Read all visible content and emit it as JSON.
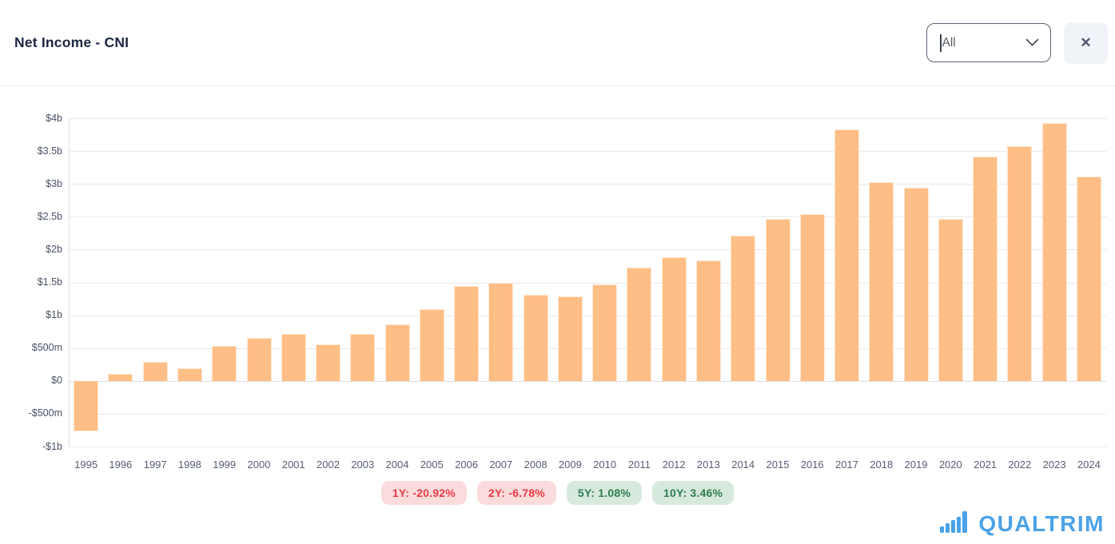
{
  "header": {
    "title": "Net Income - CNI",
    "range_selector": {
      "value": "All"
    },
    "close_button": {
      "glyph": "✕"
    }
  },
  "chart_data": {
    "type": "bar",
    "title": "Net Income - CNI",
    "unit": "$ billions",
    "categories": [
      "1995",
      "1996",
      "1997",
      "1998",
      "1999",
      "2000",
      "2001",
      "2002",
      "2003",
      "2004",
      "2005",
      "2006",
      "2007",
      "2008",
      "2009",
      "2010",
      "2011",
      "2012",
      "2013",
      "2014",
      "2015",
      "2016",
      "2017",
      "2018",
      "2019",
      "2020",
      "2021",
      "2022",
      "2023",
      "2024"
    ],
    "values": [
      -0.77,
      0.11,
      0.29,
      0.19,
      0.53,
      0.65,
      0.72,
      0.56,
      0.71,
      0.86,
      1.09,
      1.45,
      1.5,
      1.31,
      1.29,
      1.47,
      1.72,
      1.88,
      1.83,
      2.21,
      2.47,
      2.54,
      3.83,
      3.03,
      2.94,
      2.47,
      3.42,
      3.58,
      3.93,
      3.11
    ],
    "ylim": [
      -1,
      4
    ],
    "y_ticks": [
      {
        "value": 4,
        "label": "$4b"
      },
      {
        "value": 3.5,
        "label": "$3.5b"
      },
      {
        "value": 3,
        "label": "$3b"
      },
      {
        "value": 2.5,
        "label": "$2.5b"
      },
      {
        "value": 2,
        "label": "$2b"
      },
      {
        "value": 1.5,
        "label": "$1.5b"
      },
      {
        "value": 1,
        "label": "$1b"
      },
      {
        "value": 0.5,
        "label": "$500m"
      },
      {
        "value": 0,
        "label": "$0"
      },
      {
        "value": -0.5,
        "label": "-$500m"
      },
      {
        "value": -1,
        "label": "-$1b"
      }
    ],
    "grid": true,
    "legend": "none",
    "bar_color": "#FFBE85"
  },
  "badges": [
    {
      "label": "1Y: -20.92%",
      "sentiment": "negative"
    },
    {
      "label": "2Y: -6.78%",
      "sentiment": "negative"
    },
    {
      "label": "5Y: 1.08%",
      "sentiment": "positive"
    },
    {
      "label": "10Y: 3.46%",
      "sentiment": "positive"
    }
  ],
  "logo": {
    "text": "QUALTRIM"
  },
  "colors": {
    "bar": "#FFBE85",
    "negative_badge_bg": "#FADCDC",
    "negative_badge_text": "#E93B44",
    "positive_badge_bg": "#D7E9DC",
    "positive_badge_text": "#2F7D4F",
    "brand_blue": "#4AA2E8",
    "title_text": "#1C2642"
  }
}
